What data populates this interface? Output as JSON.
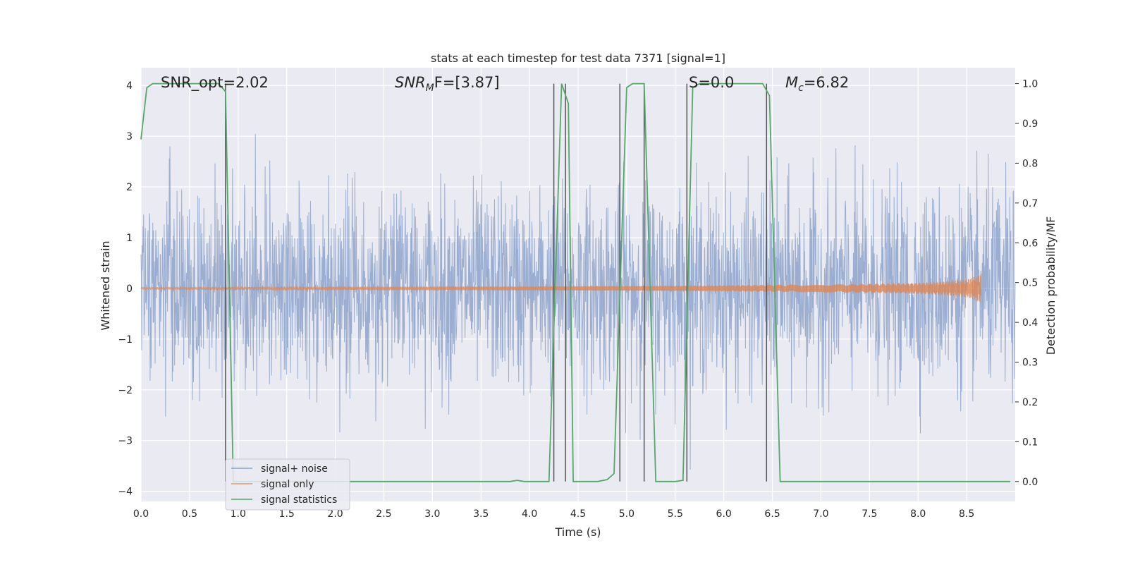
{
  "chart_data": {
    "type": "line",
    "title": "stats at each timestep for test data 7371 [signal=1]",
    "xlabel": "Time (s)",
    "ylabel": "Whitened strain",
    "ylabel_right": "Detection probability/MF",
    "xlim": [
      0.0,
      9.0
    ],
    "ylim": [
      -4.2,
      4.35
    ],
    "ylim_right": [
      -0.05,
      1.04
    ],
    "grid": true,
    "legend_placement": "lower-left",
    "x_ticks": [
      "0.0",
      "0.5",
      "1.0",
      "1.5",
      "2.0",
      "2.5",
      "3.0",
      "3.5",
      "4.0",
      "4.5",
      "5.0",
      "5.5",
      "6.0",
      "6.5",
      "7.0",
      "7.5",
      "8.0",
      "8.5"
    ],
    "x_tick_values": [
      0.0,
      0.5,
      1.0,
      1.5,
      2.0,
      2.5,
      3.0,
      3.5,
      4.0,
      4.5,
      5.0,
      5.5,
      6.0,
      6.5,
      7.0,
      7.5,
      8.0,
      8.5
    ],
    "y_ticks": [
      "4",
      "3",
      "2",
      "1",
      "0",
      "−1",
      "−2",
      "−3",
      "−4"
    ],
    "y_tick_values": [
      4,
      3,
      2,
      1,
      0,
      -1,
      -2,
      -3,
      -4
    ],
    "y_right_ticks": [
      "1.0",
      "0.9",
      "0.8",
      "0.7",
      "0.6",
      "0.5",
      "0.4",
      "0.3",
      "0.2",
      "0.1",
      "0.0"
    ],
    "y_right_tick_values": [
      1.0,
      0.9,
      0.8,
      0.7,
      0.6,
      0.5,
      0.4,
      0.3,
      0.2,
      0.1,
      0.0
    ],
    "annotations": {
      "snr_opt": "SNR_opt=2.02",
      "snr_mf_main": "SNR",
      "snr_mf_sub": "M",
      "snr_mf_rest": "F=[3.87]",
      "s_value": "S=0.0",
      "mc_main": "M",
      "mc_sub": "c",
      "mc_rest": "=6.82"
    },
    "series": [
      {
        "name": "signal+ noise",
        "color": "#4c72b0",
        "opacity": 0.5,
        "noise_std": 0.95,
        "x_range": [
          0.0,
          9.0
        ]
      },
      {
        "name": "signal only",
        "color": "#dd8452",
        "x": [
          0.0,
          2.0,
          4.0,
          5.0,
          6.0,
          7.0,
          7.5,
          8.0,
          8.3,
          8.5,
          8.6,
          8.65
        ],
        "envelope": [
          0.02,
          0.03,
          0.04,
          0.05,
          0.06,
          0.08,
          0.09,
          0.11,
          0.14,
          0.18,
          0.24,
          0.3
        ]
      },
      {
        "name": "signal statistics",
        "color": "#55a868",
        "axis": "right",
        "x": [
          0.0,
          0.06,
          0.12,
          0.8,
          0.87,
          0.95,
          1.0,
          3.8,
          3.87,
          3.95,
          4.2,
          4.33,
          4.4,
          4.45,
          4.7,
          4.8,
          4.87,
          5.0,
          5.06,
          5.18,
          5.3,
          5.5,
          5.58,
          5.68,
          5.75,
          6.4,
          6.47,
          6.58,
          8.95
        ],
        "values": [
          0.86,
          0.99,
          1.0,
          1.0,
          0.98,
          0.0,
          0.0,
          0.0,
          0.003,
          0.0,
          0.0,
          1.0,
          0.95,
          0.0,
          0.0,
          0.005,
          0.02,
          0.99,
          1.0,
          1.0,
          0.0,
          0.0,
          0.003,
          0.99,
          1.0,
          1.0,
          0.97,
          0.0,
          0.0
        ]
      }
    ],
    "vertical_markers": {
      "color": "#555555",
      "x": [
        0.87,
        4.25,
        4.37,
        4.93,
        5.18,
        5.62,
        6.44
      ]
    },
    "legend": {
      "noise_label": "signal+ noise",
      "signal_label": "signal only",
      "stats_label": "signal statistics"
    }
  }
}
